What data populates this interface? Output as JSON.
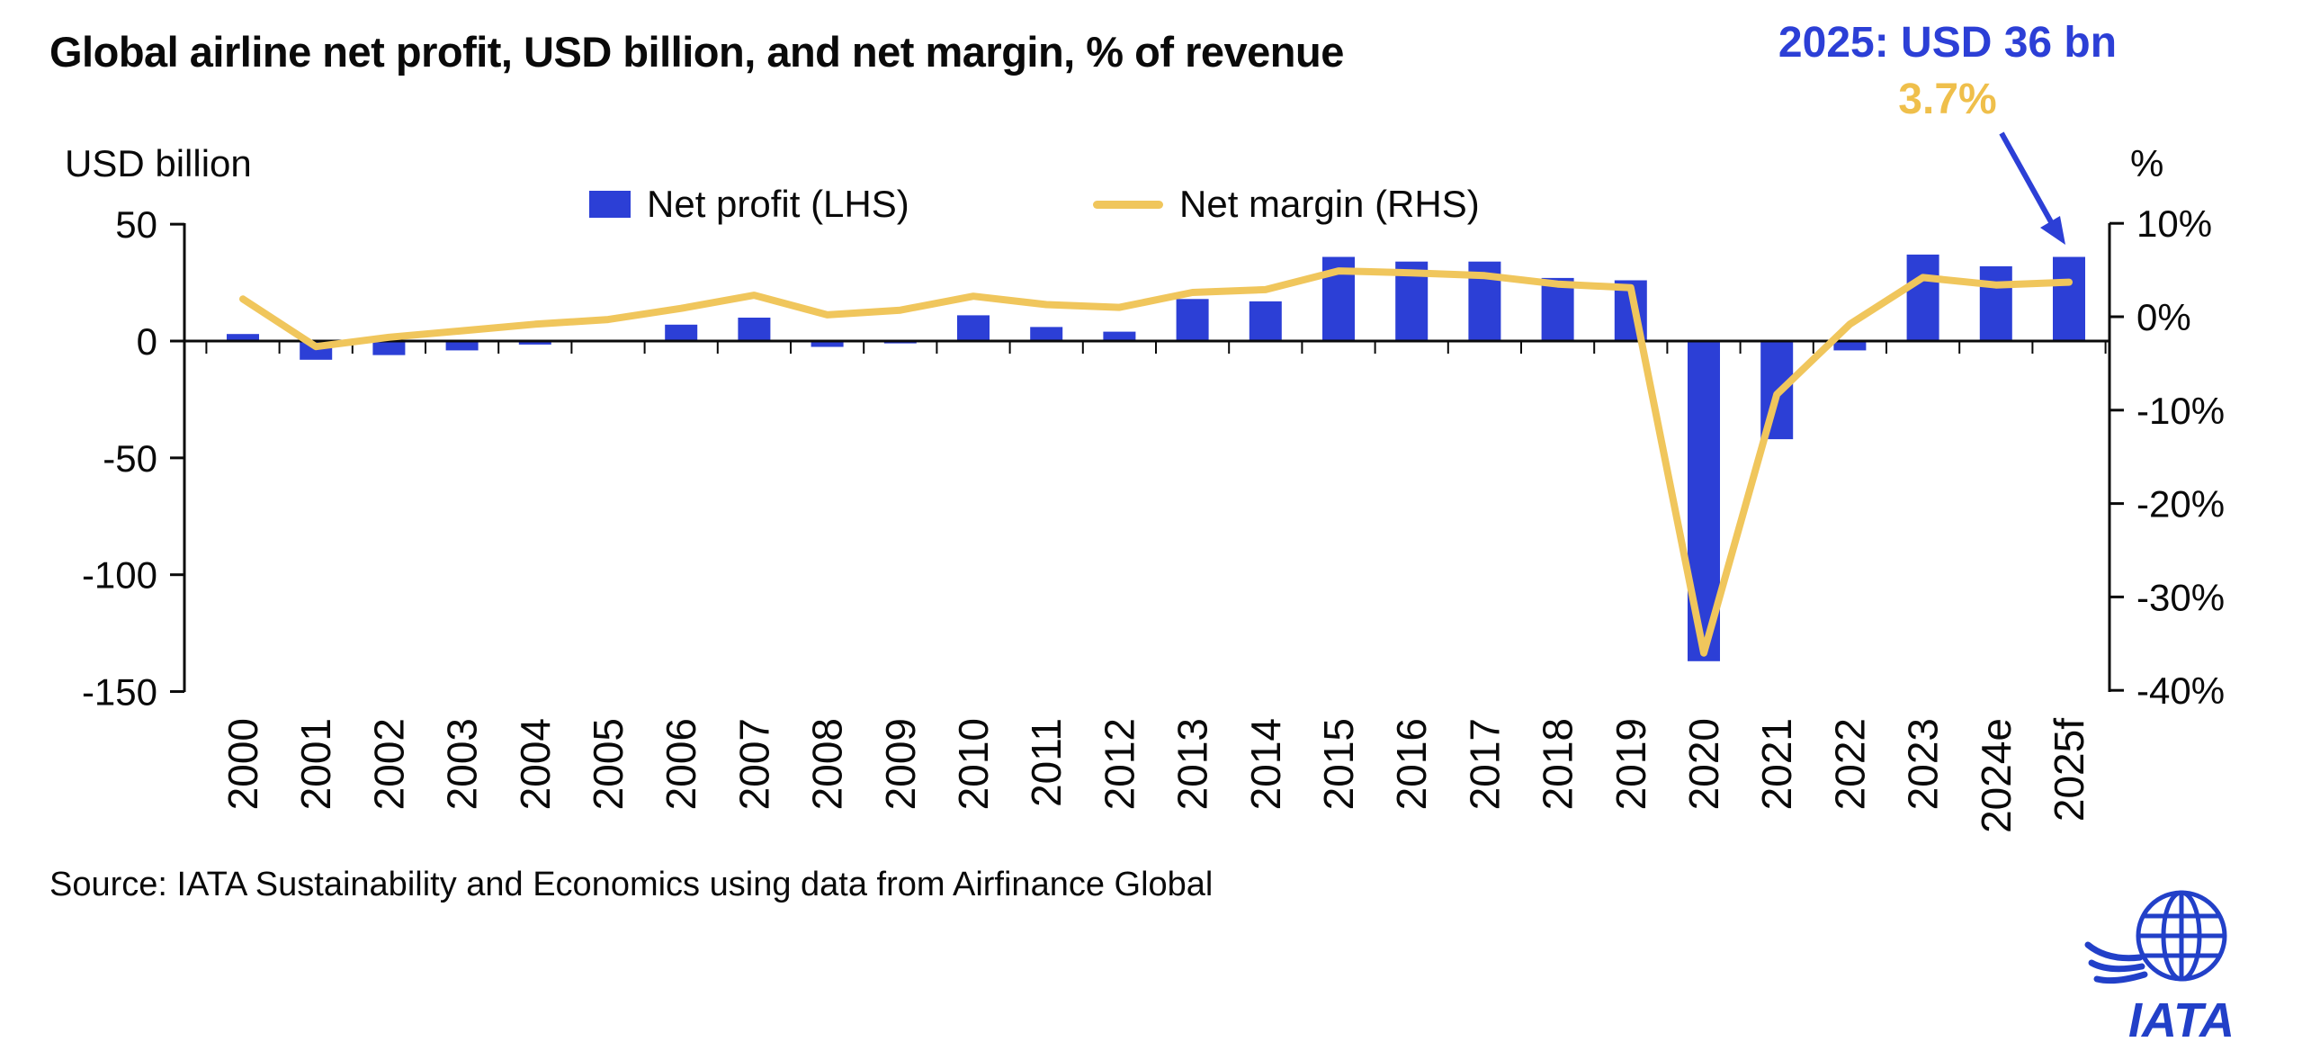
{
  "title": "Global airline net profit, USD billion, and net margin, % of revenue",
  "annotation": {
    "line1": "2025: USD 36 bn",
    "line2": "3.7%"
  },
  "legend": {
    "items": [
      {
        "label": "Net profit (LHS)"
      },
      {
        "label": "Net margin (RHS)"
      }
    ]
  },
  "axes": {
    "left_title": "USD billion",
    "right_title": "%"
  },
  "source": "Source: IATA Sustainability and Economics using data from Airfinance Global",
  "logo_text": "IATA",
  "colors": {
    "bar_blue": "#2C3FD6",
    "line_gold": "#F0C65C",
    "annotation_blue": "#2C3FD6",
    "annotation_gold": "#EFBF4B",
    "axis_black": "#0a0a0a",
    "logo_blue": "#2240C8"
  },
  "chart_data": {
    "type": "bar",
    "title": "Global airline net profit, USD billion, and net margin, % of revenue",
    "categories": [
      "2000",
      "2001",
      "2002",
      "2003",
      "2004",
      "2005",
      "2006",
      "2007",
      "2008",
      "2009",
      "2010",
      "2011",
      "2012",
      "2013",
      "2014",
      "2015",
      "2016",
      "2017",
      "2018",
      "2019",
      "2020",
      "2021",
      "2022",
      "2023",
      "2024e",
      "2025f"
    ],
    "series": [
      {
        "name": "Net profit (LHS)",
        "type": "bar",
        "axis": "left",
        "unit": "USD billion",
        "values": [
          3,
          -8,
          -6,
          -4,
          -1.5,
          -0.5,
          7,
          10,
          -2.5,
          -1,
          11,
          6,
          4,
          18,
          17,
          36,
          34,
          34,
          27,
          26,
          -137,
          -42,
          -4,
          37,
          32,
          36
        ]
      },
      {
        "name": "Net margin (RHS)",
        "type": "line",
        "axis": "right",
        "unit": "%",
        "values": [
          1.9,
          -3.2,
          -2.2,
          -1.5,
          -0.8,
          -0.3,
          0.9,
          2.3,
          0.2,
          0.7,
          2.2,
          1.3,
          1.0,
          2.6,
          2.9,
          4.9,
          4.7,
          4.4,
          3.5,
          3.1,
          -36.0,
          -8.3,
          -0.8,
          4.2,
          3.4,
          3.7
        ]
      }
    ],
    "left_axis": {
      "title": "USD billion",
      "range": [
        -150,
        50
      ],
      "ticks": [
        50,
        0,
        -50,
        -100,
        -150
      ]
    },
    "right_axis": {
      "title": "%",
      "range": [
        -40,
        10
      ],
      "ticks": [
        10,
        0,
        -10,
        -20,
        -30,
        -40
      ],
      "tick_suffix": "%"
    },
    "annotation": "2025: USD 36 bn, 3.7%",
    "legend_position": "top",
    "grid": false
  }
}
